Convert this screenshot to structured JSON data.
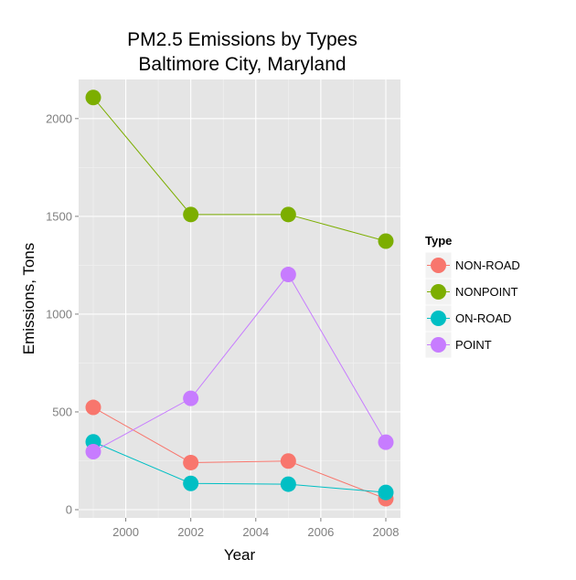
{
  "chart_data": {
    "type": "line",
    "title": [
      "PM2.5 Emissions by Types",
      "Baltimore City, Maryland"
    ],
    "xlabel": "Year",
    "ylabel": "Emissions, Tons",
    "xlim": [
      1998.55,
      2008.45
    ],
    "ylim": [
      -42,
      2200
    ],
    "x_ticks": [
      2000,
      2002,
      2004,
      2006,
      2008
    ],
    "y_ticks": [
      0,
      500,
      1000,
      1500,
      2000
    ],
    "x_minor_ticks": [
      1999,
      2001,
      2003,
      2005,
      2007
    ],
    "y_minor_ticks": [
      250,
      750,
      1250,
      1750
    ],
    "grid": true,
    "legend_title": "Type",
    "legend_position": "right",
    "x": [
      1999,
      2002,
      2005,
      2008
    ],
    "series": [
      {
        "name": "NON-ROAD",
        "color": "#F8766D",
        "values": [
          522.94,
          240.85,
          248.93,
          55.82
        ]
      },
      {
        "name": "NONPOINT",
        "color": "#7CAE00",
        "values": [
          2107.63,
          1509.5,
          1509.5,
          1373.21
        ]
      },
      {
        "name": "ON-ROAD",
        "color": "#00BFC4",
        "values": [
          346.82,
          134.31,
          130.43,
          88.28
        ]
      },
      {
        "name": "POINT",
        "color": "#C77CFF",
        "values": [
          296.8,
          569.26,
          1202.49,
          344.98
        ]
      }
    ]
  }
}
